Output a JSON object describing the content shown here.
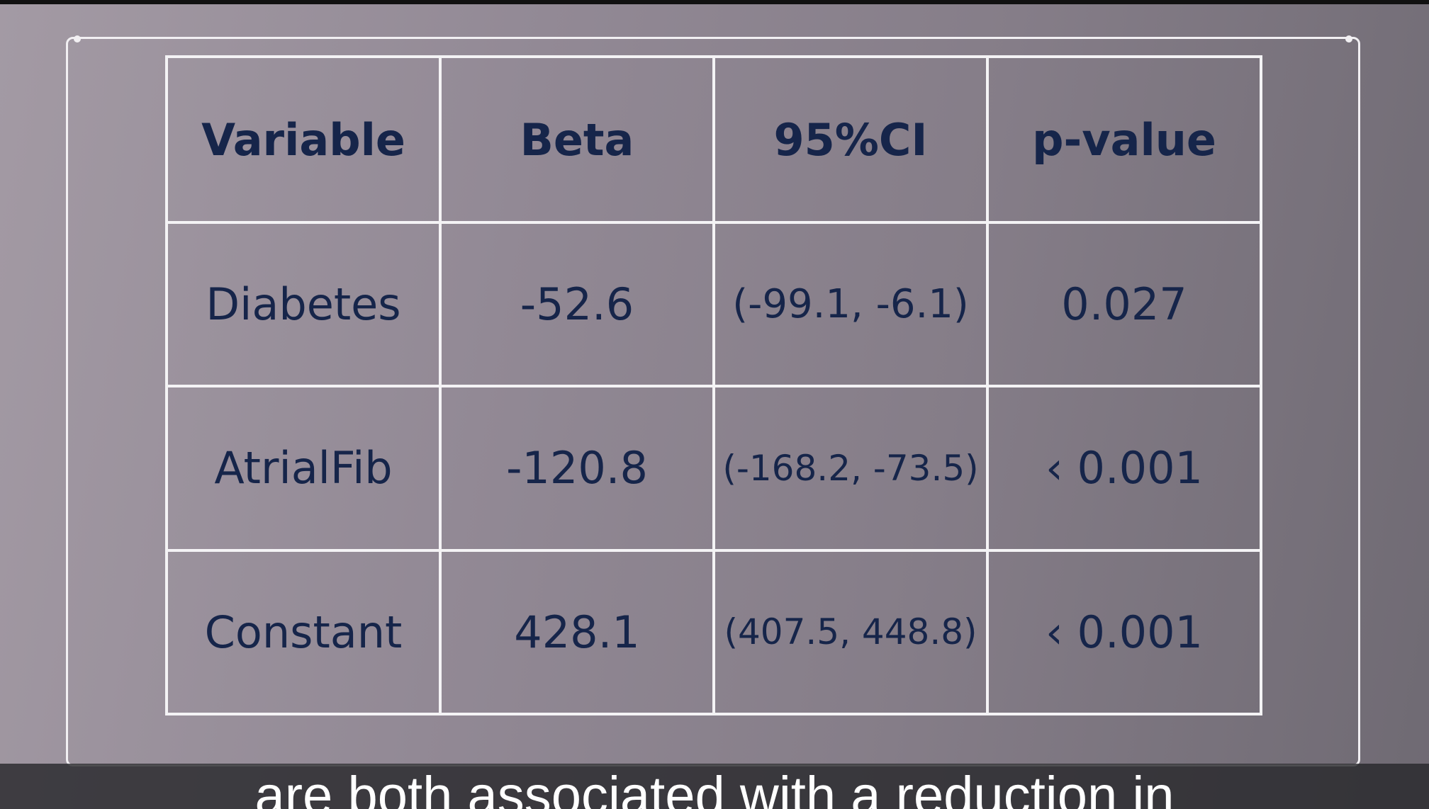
{
  "table": {
    "headers": [
      "Variable",
      "Beta",
      "95%CI",
      "p-value"
    ],
    "rows": [
      [
        "Diabetes",
        "-52.6",
        "(-99.1, -6.1)",
        "0.027"
      ],
      [
        "AtrialFib",
        "-120.8",
        "(-168.2, -73.5)",
        "‹ 0.001"
      ],
      [
        "Constant",
        "428.1",
        "(407.5, 448.8)",
        "‹ 0.001"
      ]
    ]
  },
  "caption": {
    "text": "are both associated with a reduction in"
  }
}
